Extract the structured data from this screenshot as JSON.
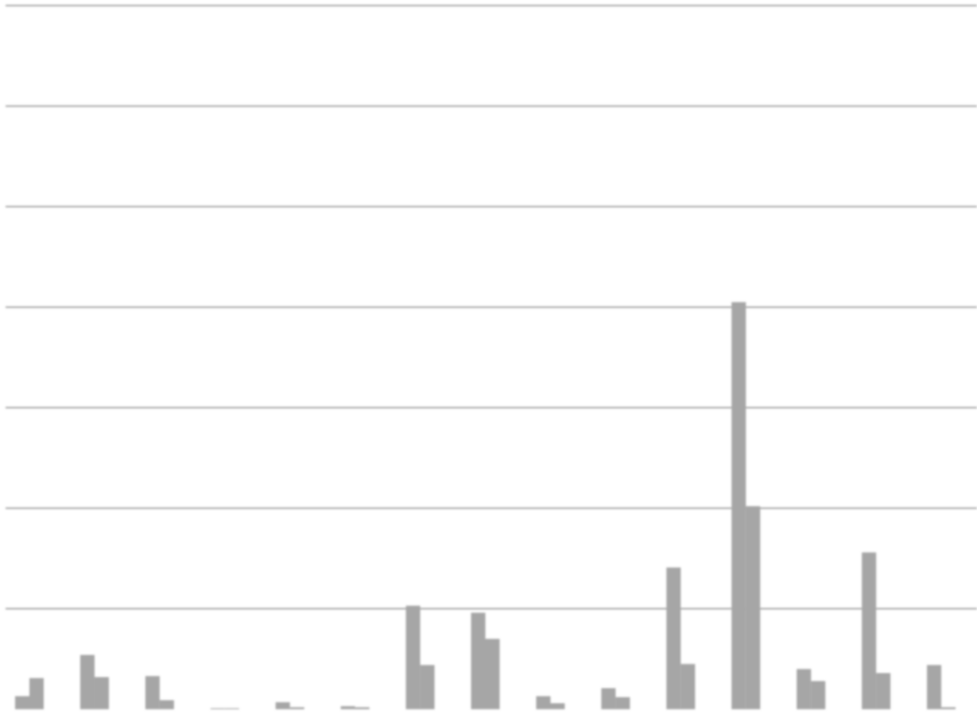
{
  "chart_data": {
    "type": "bar",
    "categories": [
      null,
      null,
      null,
      null,
      null,
      null,
      null,
      null,
      null,
      null,
      null,
      null,
      null,
      null,
      null
    ],
    "series": [
      {
        "color": "#a6a6a6",
        "values": [
          0.13,
          0.54,
          0.33,
          0.01,
          0.07,
          0.03,
          1.03,
          0.96,
          0.13,
          0.21,
          1.41,
          4.05,
          0.4,
          1.56,
          0.44
        ]
      },
      {
        "color": "#a6a6a6",
        "values": [
          0.31,
          0.32,
          0.09,
          0.01,
          0.02,
          0.02,
          0.44,
          0.7,
          0.06,
          0.12,
          0.45,
          2.02,
          0.28,
          0.36,
          0.02
        ]
      }
    ],
    "ylim": [
      0,
      7
    ],
    "yticks": [
      1,
      2,
      3,
      4,
      5,
      6,
      7
    ],
    "grid": true
  }
}
